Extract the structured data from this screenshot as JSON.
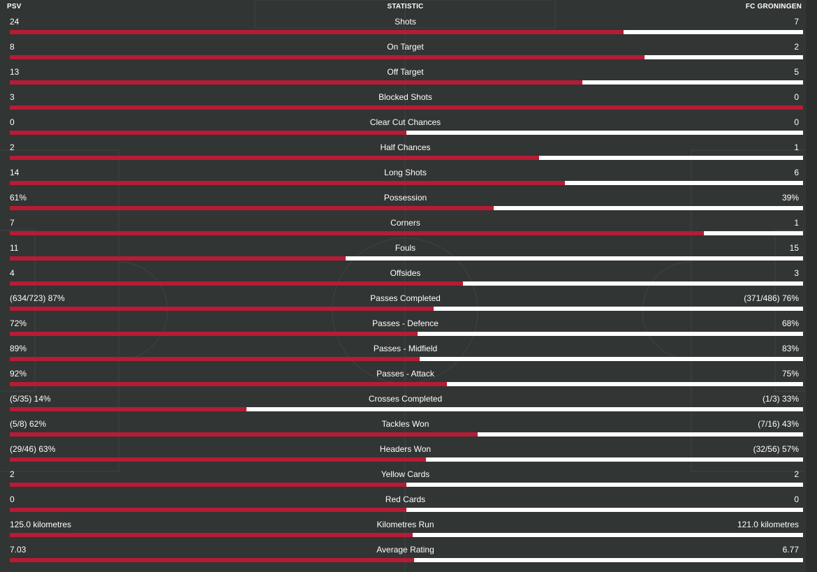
{
  "header": {
    "home_team": "PSV",
    "column_title": "STATISTIC",
    "away_team": "FC GRONINGEN"
  },
  "colors": {
    "background": "#313534",
    "home_bar": "#b81b35",
    "away_bar": "#ffffff"
  },
  "stats": [
    {
      "name": "Shots",
      "home": "24",
      "away": "7",
      "home_share": 0.774
    },
    {
      "name": "On Target",
      "home": "8",
      "away": "2",
      "home_share": 0.8
    },
    {
      "name": "Off Target",
      "home": "13",
      "away": "5",
      "home_share": 0.722
    },
    {
      "name": "Blocked Shots",
      "home": "3",
      "away": "0",
      "home_share": 1.0
    },
    {
      "name": "Clear Cut Chances",
      "home": "0",
      "away": "0",
      "home_share": 0.5
    },
    {
      "name": "Half Chances",
      "home": "2",
      "away": "1",
      "home_share": 0.667
    },
    {
      "name": "Long Shots",
      "home": "14",
      "away": "6",
      "home_share": 0.7
    },
    {
      "name": "Possession",
      "home": "61%",
      "away": "39%",
      "home_share": 0.61
    },
    {
      "name": "Corners",
      "home": "7",
      "away": "1",
      "home_share": 0.875
    },
    {
      "name": "Fouls",
      "home": "11",
      "away": "15",
      "home_share": 0.423
    },
    {
      "name": "Offsides",
      "home": "4",
      "away": "3",
      "home_share": 0.571
    },
    {
      "name": "Passes Completed",
      "home": "(634/723) 87%",
      "away": "(371/486) 76%",
      "home_share": 0.534
    },
    {
      "name": "Passes - Defence",
      "home": "72%",
      "away": "68%",
      "home_share": 0.514
    },
    {
      "name": "Passes - Midfield",
      "home": "89%",
      "away": "83%",
      "home_share": 0.517
    },
    {
      "name": "Passes - Attack",
      "home": "92%",
      "away": "75%",
      "home_share": 0.551
    },
    {
      "name": "Crosses Completed",
      "home": "(5/35) 14%",
      "away": "(1/3) 33%",
      "home_share": 0.298
    },
    {
      "name": "Tackles Won",
      "home": "(5/8) 62%",
      "away": "(7/16) 43%",
      "home_share": 0.59
    },
    {
      "name": "Headers Won",
      "home": "(29/46) 63%",
      "away": "(32/56) 57%",
      "home_share": 0.525
    },
    {
      "name": "Yellow Cards",
      "home": "2",
      "away": "2",
      "home_share": 0.5
    },
    {
      "name": "Red Cards",
      "home": "0",
      "away": "0",
      "home_share": 0.5
    },
    {
      "name": "Kilometres Run",
      "home": "125.0 kilometres",
      "away": "121.0 kilometres",
      "home_share": 0.508
    },
    {
      "name": "Average Rating",
      "home": "7.03",
      "away": "6.77",
      "home_share": 0.51
    }
  ]
}
